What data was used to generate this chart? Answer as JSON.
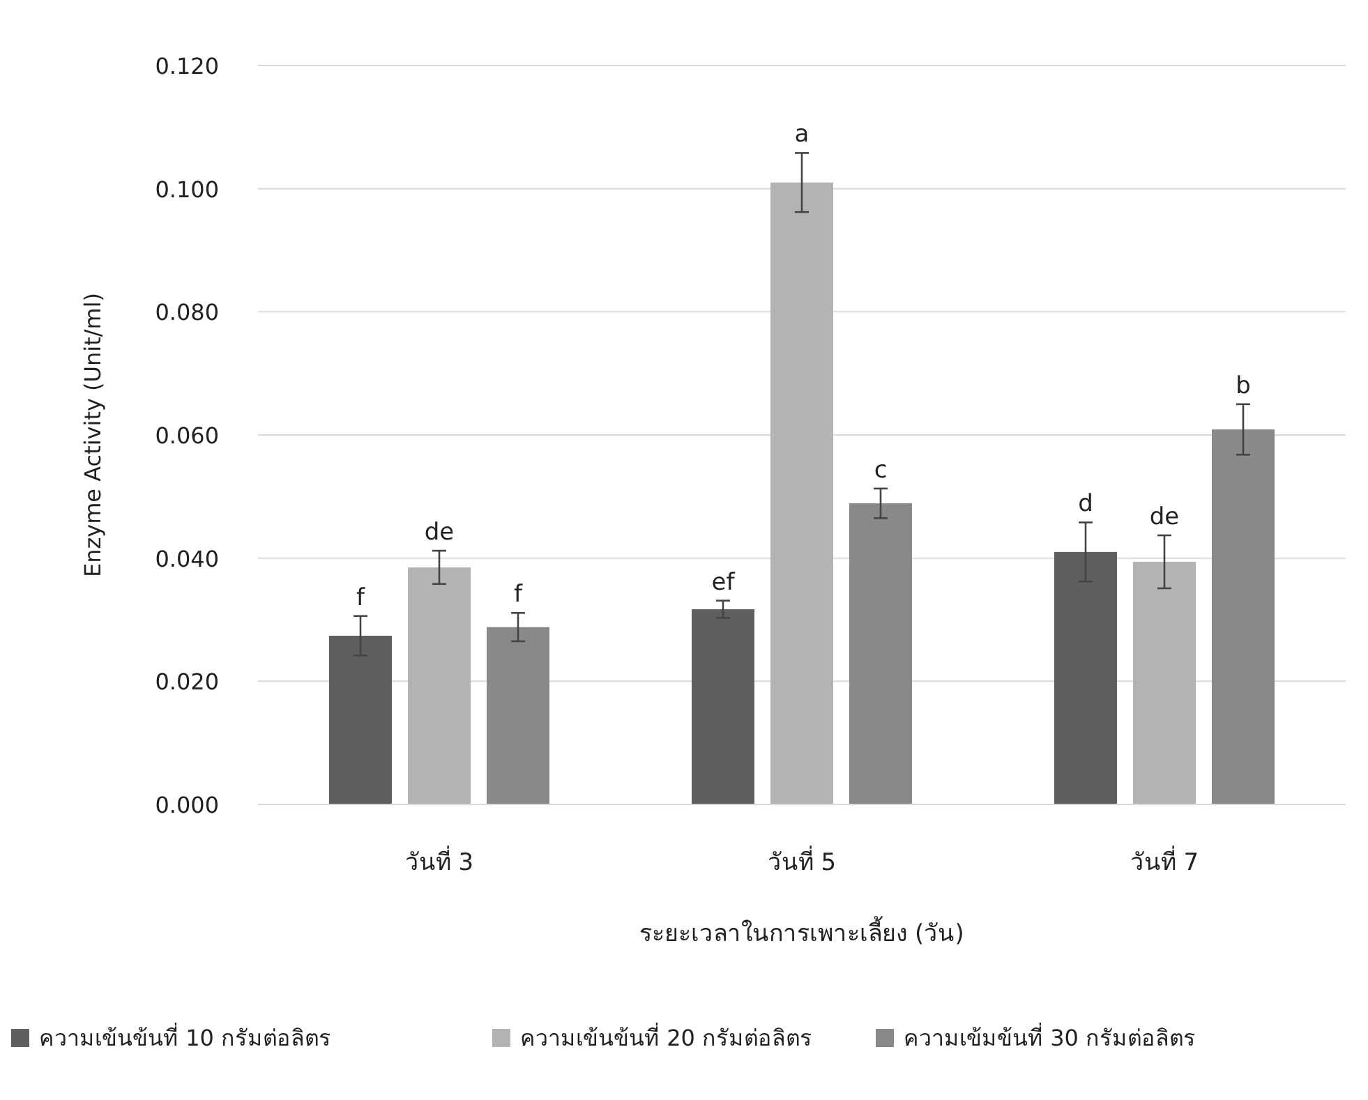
{
  "chart_data": {
    "type": "bar",
    "categories": [
      "วันที่ 3",
      "วันที่ 5",
      "วันที่ 7"
    ],
    "xlabel": "ระยะเวลาในการเพาะเลี้ยง (วัน)",
    "ylabel": "Enzyme Activity (Unit/ml)",
    "ylim": [
      0,
      0.12
    ],
    "yticks": [
      {
        "value": 0,
        "label": "0.000"
      },
      {
        "value": 0.02,
        "label": "0.020"
      },
      {
        "value": 0.04,
        "label": "0.040"
      },
      {
        "value": 0.06,
        "label": "0.060"
      },
      {
        "value": 0.08,
        "label": "0.080"
      },
      {
        "value": 0.1,
        "label": "0.100"
      },
      {
        "value": 0.12,
        "label": "0.120"
      }
    ],
    "grid": "y",
    "legend": "bottom",
    "series": [
      {
        "name": "ความเข้นข้นที่ 10 กรัมต่อลิตร",
        "color": "#5f5f5f",
        "values": [
          0.0274,
          0.0317,
          0.041
        ],
        "errors": [
          0.0032,
          0.0014,
          0.0048
        ],
        "value_labels": [
          "f",
          "ef",
          "d"
        ]
      },
      {
        "name": "ความเข้นข้นที่ 20 กรัมต่อลิตร",
        "color": "#b3b3b3",
        "values": [
          0.0385,
          0.101,
          0.0394
        ],
        "errors": [
          0.0027,
          0.0048,
          0.0043
        ],
        "value_labels": [
          "de",
          "a",
          "de"
        ]
      },
      {
        "name": "ความเข้มข้นที่ 30 กรัมต่อลิตร",
        "color": "#898989",
        "values": [
          0.0288,
          0.0489,
          0.0609
        ],
        "errors": [
          0.0023,
          0.0024,
          0.0041
        ],
        "value_labels": [
          "f",
          "c",
          "b"
        ]
      }
    ]
  }
}
